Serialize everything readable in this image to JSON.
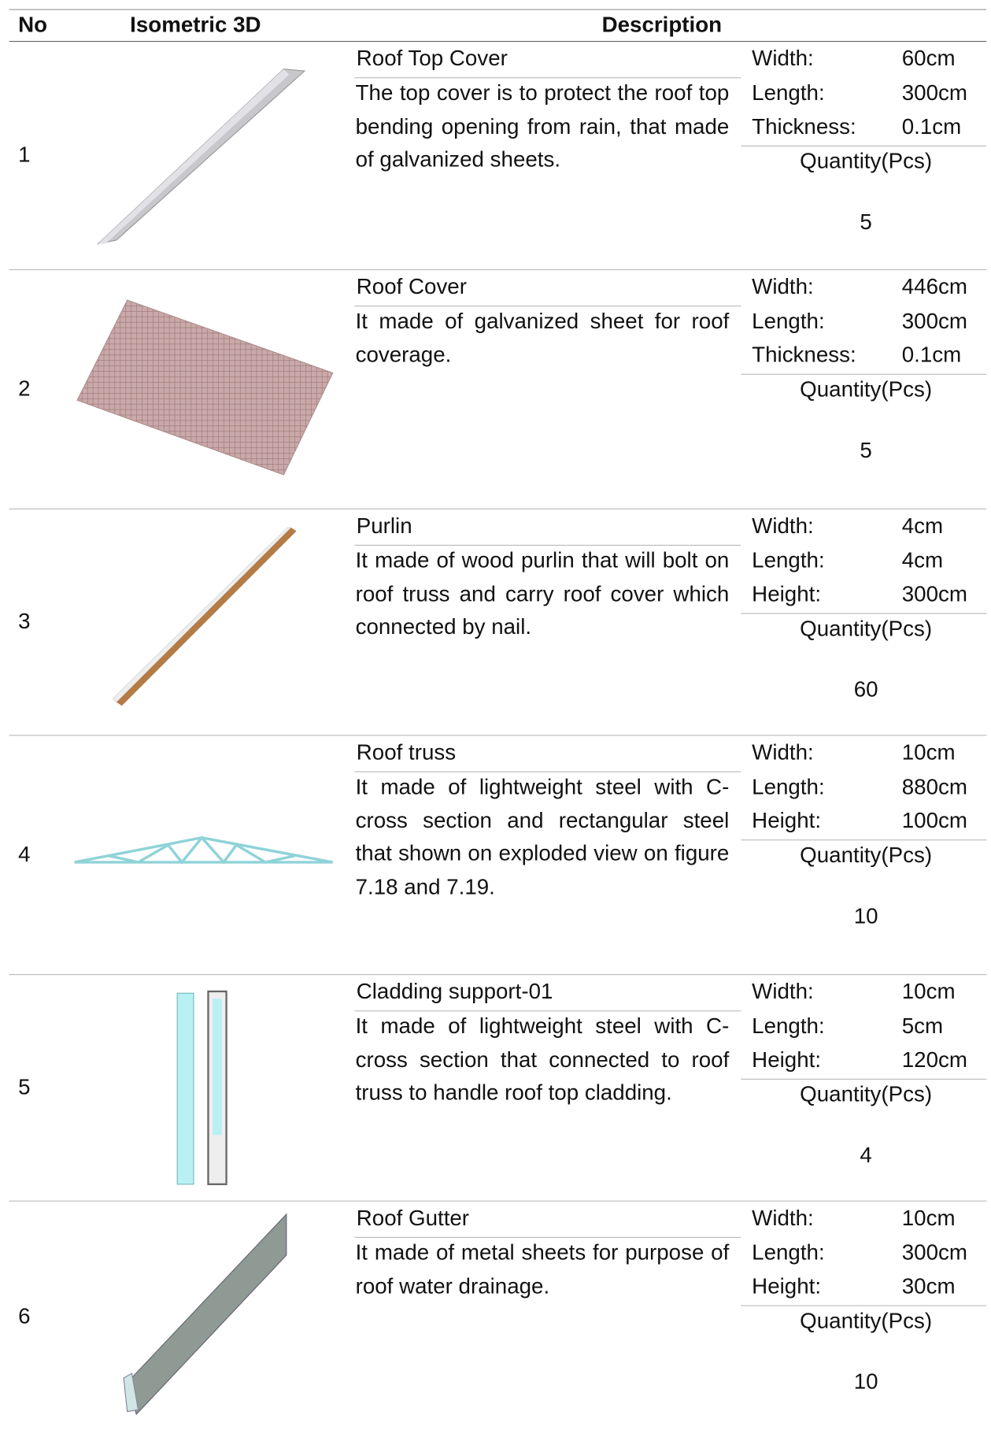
{
  "header": {
    "no": "No",
    "iso": "Isometric 3D",
    "description": "Description"
  },
  "rows": [
    {
      "no": "1",
      "title": "Roof Top Cover",
      "description": "The top cover is to protect the roof top bending opening from rain, that made of galvanized sheets.",
      "specs": [
        {
          "label": "Width:",
          "value": "60cm"
        },
        {
          "label": "Length:",
          "value": "300cm"
        },
        {
          "label": "Thickness:",
          "value": "0.1cm"
        }
      ],
      "quantity_label": "Quantity(Pcs)",
      "quantity": 5
    },
    {
      "no": "2",
      "title": "Roof Cover",
      "description": "It made of galvanized sheet for roof coverage.",
      "specs": [
        {
          "label": "Width:",
          "value": "446cm"
        },
        {
          "label": "Length:",
          "value": "300cm"
        },
        {
          "label": "Thickness:",
          "value": "0.1cm"
        }
      ],
      "quantity_label": "Quantity(Pcs)",
      "quantity": 5
    },
    {
      "no": "3",
      "title": "Purlin",
      "description": "It made of wood purlin that will bolt on roof truss and carry roof cover which connected by nail.",
      "specs": [
        {
          "label": "Width:",
          "value": "4cm"
        },
        {
          "label": "Length:",
          "value": "4cm"
        },
        {
          "label": "Height:",
          "value": "300cm"
        }
      ],
      "quantity_label": "Quantity(Pcs)",
      "quantity": 60
    },
    {
      "no": "4",
      "title": "Roof truss",
      "description": "It made of lightweight steel with C-cross section and rectangular steel that shown on exploded view on figure 7.18 and 7.19.",
      "specs": [
        {
          "label": "Width:",
          "value": "10cm"
        },
        {
          "label": "Length:",
          "value": "880cm"
        },
        {
          "label": "Height:",
          "value": "100cm"
        }
      ],
      "quantity_label": "Quantity(Pcs)",
      "quantity": 10
    },
    {
      "no": "5",
      "title": "Cladding support-01",
      "description": "It made of lightweight steel with C-cross section that connected to roof truss to handle roof top cladding.",
      "specs": [
        {
          "label": "Width:",
          "value": "10cm"
        },
        {
          "label": "Length:",
          "value": "5cm"
        },
        {
          "label": "Height:",
          "value": "120cm"
        }
      ],
      "quantity_label": "Quantity(Pcs)",
      "quantity": 4
    },
    {
      "no": "6",
      "title": "Roof Gutter",
      "description": "It made of metal sheets for purpose of roof water drainage.",
      "specs": [
        {
          "label": "Width:",
          "value": "10cm"
        },
        {
          "label": "Length:",
          "value": "300cm"
        },
        {
          "label": "Height:",
          "value": "30cm"
        }
      ],
      "quantity_label": "Quantity(Pcs)",
      "quantity": 10
    }
  ]
}
